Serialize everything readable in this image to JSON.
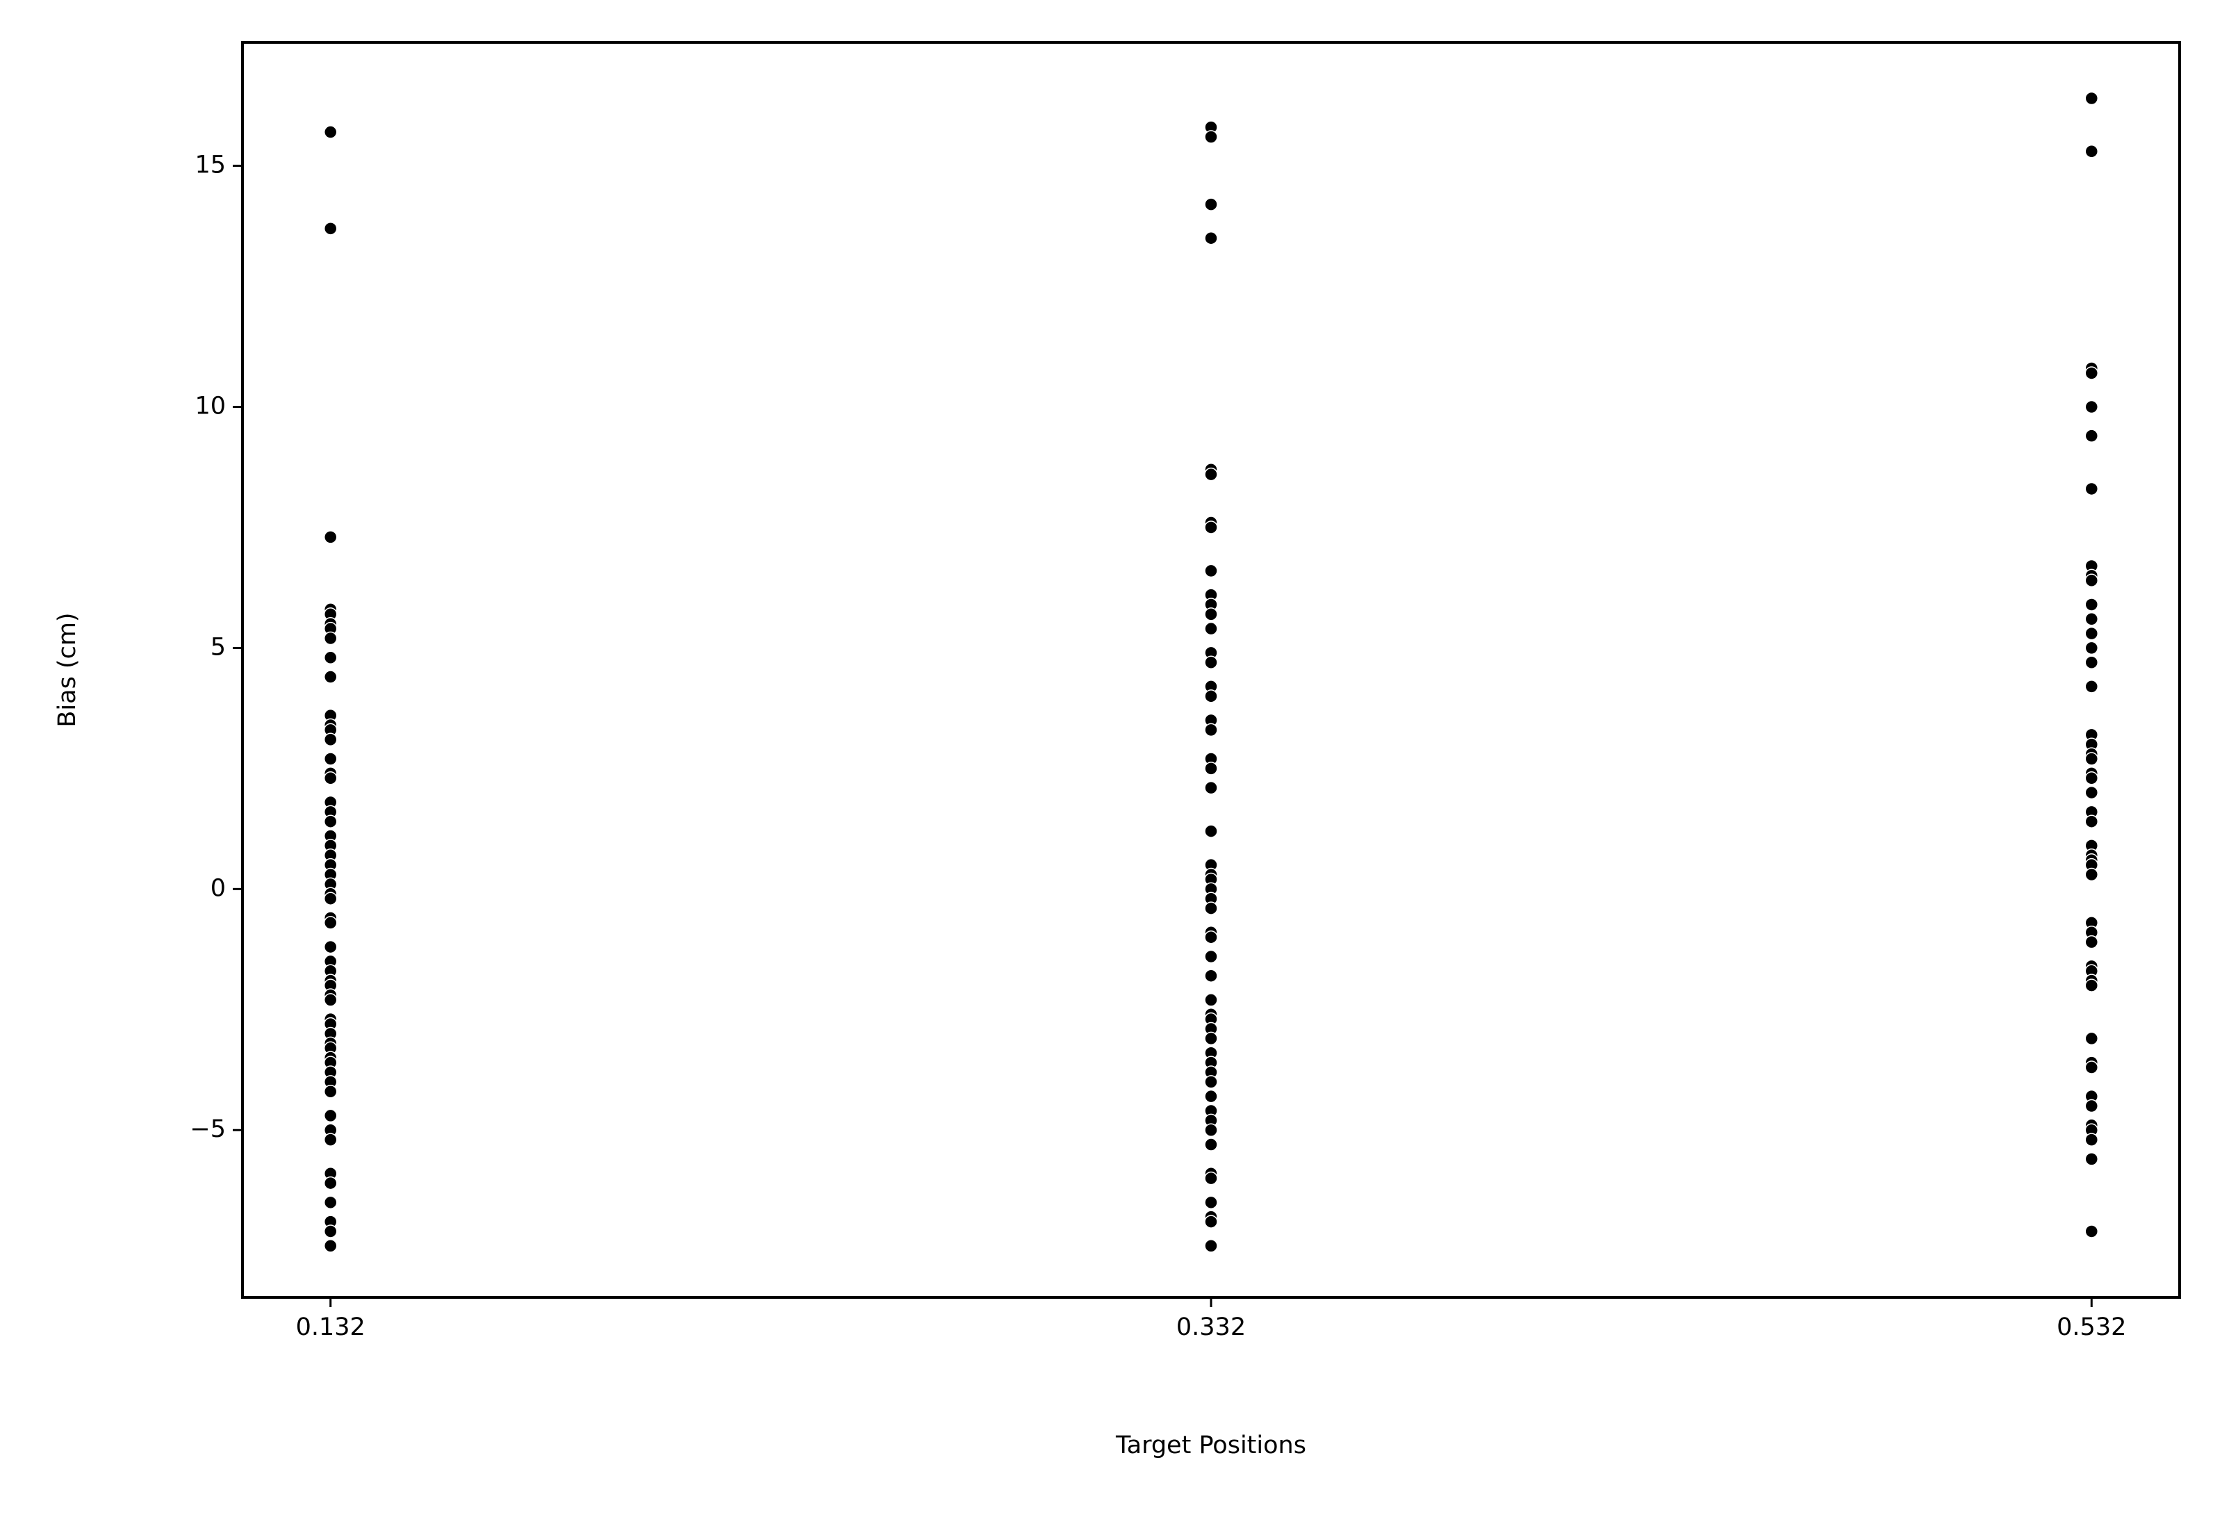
{
  "chart_data": {
    "type": "scatter",
    "xlabel": "Target Positions",
    "ylabel": "Bias (cm)",
    "xlim": [
      0.112,
      0.552
    ],
    "xticks": [
      0.132,
      0.332,
      0.532
    ],
    "ylim": [
      -8.47,
      17.56
    ],
    "yticks": [
      {
        "value": -5,
        "label": "−5"
      },
      0,
      5,
      10,
      15
    ],
    "grid": false,
    "color": "#000000",
    "series": [
      {
        "x": 0.132,
        "values": [
          15.7,
          13.7,
          7.3,
          5.8,
          5.7,
          5.5,
          5.4,
          5.2,
          4.8,
          4.4,
          3.6,
          3.4,
          3.3,
          3.1,
          2.7,
          2.4,
          2.3,
          1.8,
          1.6,
          1.4,
          1.1,
          0.9,
          0.7,
          0.5,
          0.3,
          0.1,
          -0.1,
          -0.2,
          -0.6,
          -0.7,
          -1.2,
          -1.5,
          -1.7,
          -1.9,
          -2.0,
          -2.2,
          -2.3,
          -2.7,
          -2.8,
          -3.0,
          -3.2,
          -3.3,
          -3.5,
          -3.6,
          -3.8,
          -4.0,
          -4.2,
          -4.7,
          -5.0,
          -5.2,
          -5.9,
          -6.1,
          -6.5,
          -6.9,
          -7.1,
          -7.4
        ]
      },
      {
        "x": 0.332,
        "values": [
          15.8,
          15.6,
          14.2,
          13.5,
          8.7,
          8.6,
          7.6,
          7.5,
          6.6,
          6.1,
          5.9,
          5.7,
          5.4,
          4.9,
          4.7,
          4.2,
          4.0,
          3.5,
          3.3,
          2.7,
          2.5,
          2.1,
          1.2,
          0.5,
          0.3,
          0.2,
          0.0,
          -0.2,
          -0.4,
          -0.9,
          -1.0,
          -1.4,
          -1.8,
          -2.3,
          -2.6,
          -2.7,
          -2.9,
          -3.1,
          -3.4,
          -3.6,
          -3.8,
          -4.0,
          -4.3,
          -4.6,
          -4.8,
          -5.0,
          -5.3,
          -5.9,
          -6.0,
          -6.5,
          -6.8,
          -6.9,
          -7.4
        ]
      },
      {
        "x": 0.532,
        "values": [
          16.4,
          15.3,
          10.8,
          10.7,
          10.0,
          9.4,
          8.3,
          6.7,
          6.5,
          6.4,
          5.9,
          5.6,
          5.3,
          5.0,
          4.7,
          4.2,
          3.2,
          3.0,
          2.8,
          2.7,
          2.4,
          2.3,
          2.0,
          1.6,
          1.4,
          0.9,
          0.7,
          0.6,
          0.5,
          0.3,
          -0.7,
          -0.9,
          -1.1,
          -1.6,
          -1.7,
          -1.9,
          -2.0,
          -3.1,
          -3.6,
          -3.7,
          -4.3,
          -4.5,
          -4.9,
          -5.0,
          -5.2,
          -5.6,
          -7.1
        ]
      }
    ]
  }
}
